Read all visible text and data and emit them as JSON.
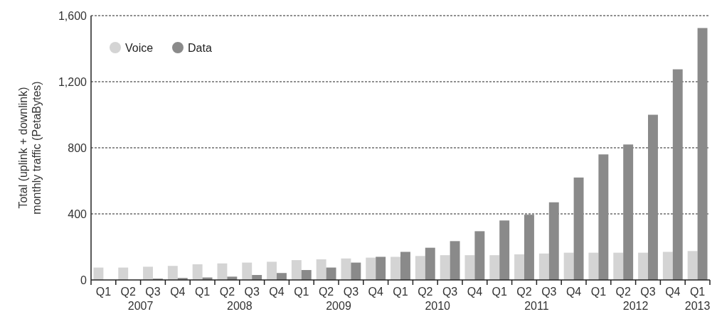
{
  "chart_data": {
    "type": "bar",
    "ylabel": "Total (uplink + downlink)\nmonthly traffic (PetaBytes)",
    "categories": [
      "Q1",
      "Q2",
      "Q3",
      "Q4",
      "Q1",
      "Q2",
      "Q3",
      "Q4",
      "Q1",
      "Q2",
      "Q3",
      "Q4",
      "Q1",
      "Q2",
      "Q3",
      "Q4",
      "Q1",
      "Q2",
      "Q3",
      "Q4",
      "Q1",
      "Q2",
      "Q3",
      "Q4",
      "Q1"
    ],
    "series": [
      {
        "name": "Voice",
        "color": "#d4d4d4",
        "values": [
          75,
          75,
          80,
          85,
          95,
          100,
          105,
          110,
          120,
          125,
          130,
          135,
          140,
          145,
          150,
          150,
          150,
          155,
          160,
          165,
          165,
          165,
          165,
          170,
          175
        ]
      },
      {
        "name": "Data",
        "color": "#8a8a8a",
        "values": [
          null,
          null,
          8,
          12,
          15,
          20,
          30,
          42,
          60,
          75,
          105,
          140,
          170,
          195,
          235,
          295,
          360,
          395,
          470,
          620,
          760,
          820,
          1000,
          1275,
          1525
        ]
      }
    ],
    "annotations": [
      "2007",
      "2008",
      "2009",
      "2010",
      "2011",
      "2012",
      "2013"
    ],
    "ylim": [
      0,
      1600
    ],
    "yticks": [
      0,
      {
        "value": 400,
        "label": "400"
      },
      {
        "value": 800,
        "label": "800"
      },
      {
        "value": 1200,
        "label": "1,200"
      },
      {
        "value": 1600,
        "label": "1,600"
      }
    ],
    "grid": "y",
    "legend": "top left"
  }
}
